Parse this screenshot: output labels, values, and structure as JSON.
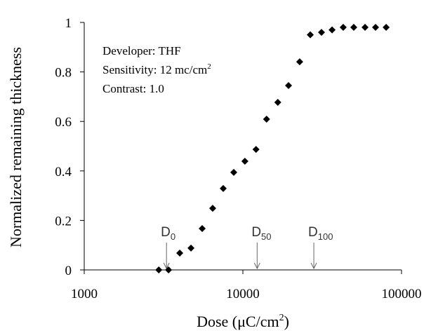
{
  "chart_data": {
    "type": "scatter",
    "x_label": {
      "text": "Dose (μC/cm",
      "sup": "2",
      "end": ")"
    },
    "y_label": "Normalized remaining thickness",
    "xscale": "log",
    "xlim": [
      1000,
      100000
    ],
    "xticks": [
      1000,
      10000,
      100000
    ],
    "ylim": [
      0,
      1
    ],
    "yticks": [
      0,
      0.2,
      0.4,
      0.6,
      0.8,
      1
    ],
    "grid": false,
    "color": "#000000",
    "x": [
      2950,
      3400,
      4000,
      4710,
      5540,
      6450,
      7520,
      8760,
      10300,
      12100,
      14100,
      16600,
      19400,
      22800,
      26600,
      31300,
      36500,
      42900,
      50000,
      58900,
      68600,
      80000
    ],
    "values": [
      0,
      0,
      0.068,
      0.088,
      0.167,
      0.249,
      0.329,
      0.394,
      0.439,
      0.487,
      0.609,
      0.677,
      0.745,
      0.841,
      0.95,
      0.96,
      0.97,
      0.98,
      0.98,
      0.98,
      0.98,
      0.98
    ],
    "annotations": [
      {
        "text": "Developer: THF"
      },
      {
        "text": "Sensitivity: 12 mc/cm",
        "sup": "2"
      },
      {
        "text": "Contrast: 1.0"
      }
    ],
    "markers": [
      {
        "label": "D",
        "sub": "0",
        "x": 3300
      },
      {
        "label": "D",
        "sub": "50",
        "x": 12300
      },
      {
        "label": "D",
        "sub": "100",
        "x": 28000
      }
    ]
  }
}
